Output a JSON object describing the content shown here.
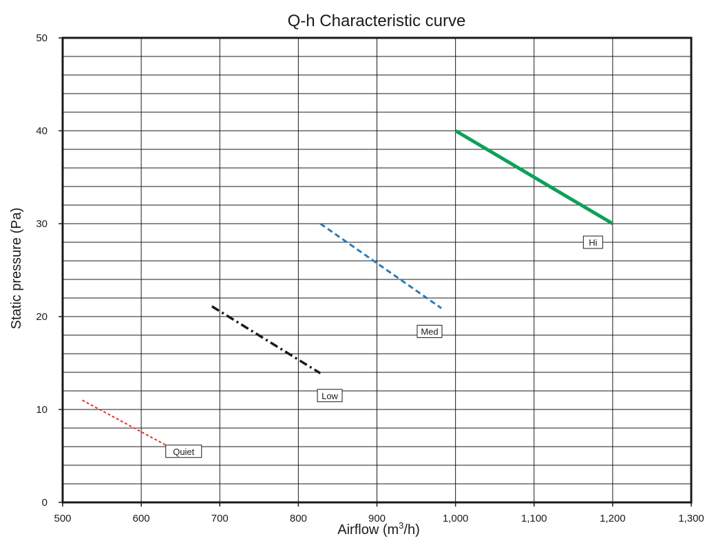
{
  "chart_data": {
    "type": "line",
    "title": "Q-h Characteristic curve",
    "xlabel": {
      "text": "Airflow (m",
      "sup": "3",
      "after": "/h)"
    },
    "ylabel": "Static pressure (Pa)",
    "xlim": [
      500,
      1300
    ],
    "ylim": [
      0,
      50
    ],
    "x_ticks": [
      500,
      600,
      700,
      800,
      900,
      1000,
      1100,
      1200,
      1300
    ],
    "x_tick_labels": [
      "500",
      "600",
      "700",
      "800",
      "900",
      "1,000",
      "1,100",
      "1,200",
      "1,300"
    ],
    "y_ticks": [
      0,
      10,
      20,
      30,
      40,
      50
    ],
    "y_tick_labels": [
      "0",
      "10",
      "20",
      "30",
      "40",
      "50"
    ],
    "x_minor_gridlines": [
      600,
      700,
      800,
      900,
      1000,
      1100,
      1200
    ],
    "y_minor_gridlines": [
      2,
      4,
      6,
      8,
      10,
      12,
      14,
      16,
      18,
      20,
      22,
      24,
      26,
      28,
      30,
      32,
      34,
      36,
      38,
      40,
      42,
      44,
      46,
      48
    ],
    "grid": true,
    "series": [
      {
        "name": "Quiet",
        "color": "#e8302a",
        "dash": "dotted",
        "points": [
          [
            525,
            11
          ],
          [
            635,
            6
          ]
        ],
        "label_at": [
          654,
          5.5
        ]
      },
      {
        "name": "Low",
        "color": "#1a1a1a",
        "dash": "dashdot",
        "points": [
          [
            690,
            21.1
          ],
          [
            828,
            13.9
          ]
        ],
        "label_at": [
          840,
          11.5
        ]
      },
      {
        "name": "Med",
        "color": "#2a7ab8",
        "dash": "dashed",
        "points": [
          [
            828,
            30
          ],
          [
            982,
            20.9
          ]
        ],
        "label_at": [
          967,
          18.4
        ]
      },
      {
        "name": "Hi",
        "color": "#0ca15a",
        "dash": "solid",
        "points": [
          [
            1000,
            40
          ],
          [
            1200,
            30
          ]
        ],
        "label_at": [
          1175,
          28
        ]
      }
    ]
  }
}
